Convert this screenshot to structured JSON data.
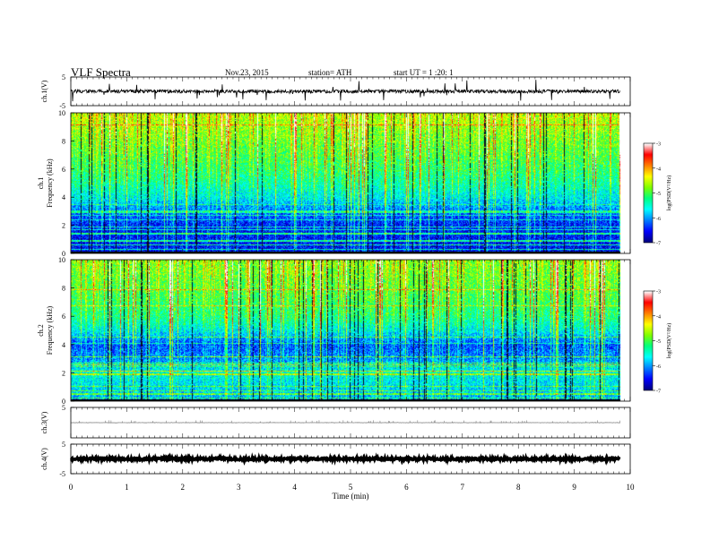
{
  "header": {
    "title": "VLF  Spectra",
    "date": "Nov.23, 2015",
    "station": "station= ATH",
    "start": "start  UT  =   1  :20: 1"
  },
  "chart_data": [
    {
      "type": "line",
      "name": "ch1-waveform",
      "ylabel": "ch.1(V)",
      "ylim": [
        -5,
        5
      ],
      "yticks": [
        "5",
        "-5"
      ],
      "xlim": [
        0,
        10
      ],
      "trace_end": 9.82,
      "baseline": 0,
      "noise_amplitude": 0.6,
      "spike_amplitude": 3.5
    },
    {
      "type": "heatmap",
      "name": "ch1-spectrogram",
      "ylabel_outer": "ch.1",
      "ylabel": "Frequency (kHz)",
      "ylim": [
        0,
        10
      ],
      "yticks": [
        "0",
        "2",
        "4",
        "6",
        "8",
        "10"
      ],
      "xlim": [
        0,
        10
      ],
      "colorbar": {
        "label": "log(PSD(V²/Hz)",
        "range": [
          -7,
          -3
        ],
        "ticks": [
          "-3",
          "-4",
          "-5",
          "-6",
          "-7"
        ],
        "colormap": [
          "#000080",
          "#0000ff",
          "#0080ff",
          "#00ffff",
          "#00ff80",
          "#80ff00",
          "#ffff00",
          "#ff8000",
          "#ff0000",
          "#ffffff"
        ]
      },
      "noise_profile": [
        {
          "f": 0,
          "v": -6.6
        },
        {
          "f": 2,
          "v": -6.5
        },
        {
          "f": 3,
          "v": -6.2
        },
        {
          "f": 4,
          "v": -5.7
        },
        {
          "f": 5,
          "v": -5.4
        },
        {
          "f": 6,
          "v": -5.2
        },
        {
          "f": 8,
          "v": -4.9
        },
        {
          "f": 10,
          "v": -4.6
        }
      ]
    },
    {
      "type": "heatmap",
      "name": "ch2-spectrogram",
      "ylabel_outer": "ch.2",
      "ylabel": "Frequency (kHz)",
      "ylim": [
        0,
        10
      ],
      "yticks": [
        "0",
        "2",
        "4",
        "6",
        "8",
        "10"
      ],
      "xlim": [
        0,
        10
      ],
      "colorbar": {
        "label": "log(PSD(V²/Hz)",
        "range": [
          -7,
          -3
        ],
        "ticks": [
          "-3",
          "-4",
          "-5",
          "-6",
          "-7"
        ],
        "colormap": [
          "#000080",
          "#0000ff",
          "#0080ff",
          "#00ffff",
          "#00ff80",
          "#80ff00",
          "#ffff00",
          "#ff8000",
          "#ff0000",
          "#ffffff"
        ]
      },
      "noise_profile": [
        {
          "f": 0,
          "v": -6.0
        },
        {
          "f": 2,
          "v": -5.6
        },
        {
          "f": 3,
          "v": -6.1
        },
        {
          "f": 4,
          "v": -6.3
        },
        {
          "f": 5,
          "v": -5.7
        },
        {
          "f": 6,
          "v": -5.3
        },
        {
          "f": 8,
          "v": -5.0
        },
        {
          "f": 10,
          "v": -4.8
        }
      ]
    },
    {
      "type": "line",
      "name": "ch3-waveform",
      "ylabel": "ch.3(V)",
      "ylim": [
        -5,
        5
      ],
      "yticks": [
        "5"
      ],
      "xlim": [
        0,
        10
      ],
      "trace_end": 9.82,
      "baseline": 0,
      "noise_amplitude": 0.05,
      "spike_amplitude": 0
    },
    {
      "type": "line",
      "name": "ch4-waveform",
      "ylabel": "ch.4(V)",
      "ylim": [
        -5,
        5
      ],
      "yticks": [
        "5",
        "-5"
      ],
      "xlim": [
        0,
        10
      ],
      "trace_end": 9.82,
      "baseline": 0,
      "noise_amplitude": 0.4,
      "spike_amplitude": 0
    }
  ],
  "xaxis": {
    "label": "Time  (min)",
    "ticks": [
      "0",
      "1",
      "2",
      "3",
      "4",
      "5",
      "6",
      "7",
      "8",
      "9",
      "10"
    ],
    "xlim": [
      0,
      10
    ]
  }
}
